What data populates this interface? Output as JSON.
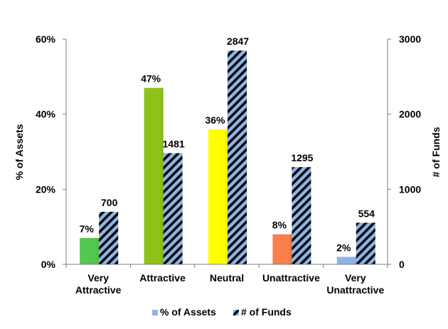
{
  "chart_data": {
    "type": "bar",
    "categories": [
      [
        "Very",
        "Attractive"
      ],
      [
        "Attractive"
      ],
      [
        "Neutral"
      ],
      [
        "Unattractive"
      ],
      [
        "Very",
        "Unattractive"
      ]
    ],
    "series": [
      {
        "name": "% of Assets",
        "axis": "left",
        "values": [
          7,
          47,
          36,
          8,
          2
        ],
        "labels": [
          "7%",
          "47%",
          "36%",
          "8%",
          "2%"
        ],
        "colors": [
          "#52c84e",
          "#8cc21a",
          "#ffff00",
          "#fa7f4a",
          "#8fb3e8"
        ],
        "legend_color": "#8fb3e8"
      },
      {
        "name": "# of Funds",
        "axis": "right",
        "values": [
          700,
          1481,
          2847,
          1295,
          554
        ],
        "labels": [
          "700",
          "1481",
          "2847",
          "1295",
          "554"
        ],
        "pattern": "hatched",
        "colors": [
          "#8cb4e6",
          "#0a0a0a"
        ]
      }
    ],
    "left_axis": {
      "label": "% of Assets",
      "ylim": [
        0,
        60
      ],
      "ticks": [
        0,
        20,
        40,
        60
      ],
      "tick_labels": [
        "0%",
        "20%",
        "40%",
        "60%"
      ]
    },
    "right_axis": {
      "label": "# of Funds",
      "ylim": [
        0,
        3000
      ],
      "ticks": [
        0,
        1000,
        2000,
        3000
      ],
      "tick_labels": [
        "0",
        "1000",
        "2000",
        "3000"
      ]
    },
    "grid": false,
    "legend_position": "bottom"
  }
}
